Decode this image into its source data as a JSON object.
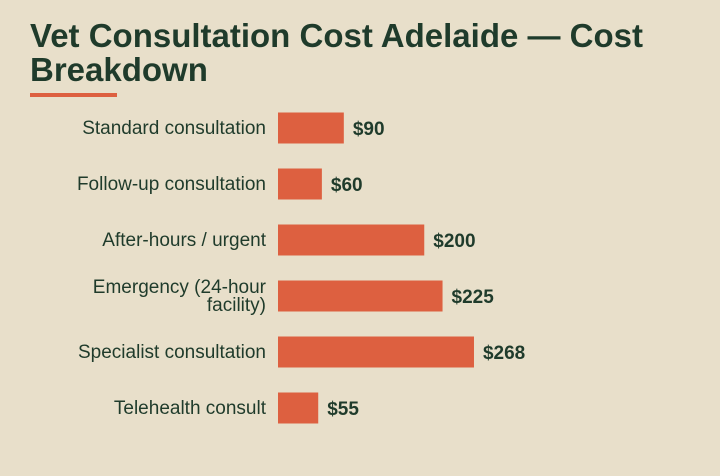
{
  "colors": {
    "background": "#e8dfca",
    "text": "#1f3b2b",
    "accent": "#dd6040"
  },
  "chart_data": {
    "type": "bar",
    "orientation": "horizontal",
    "title": "Vet Consultation Cost Adelaide — Cost Breakdown",
    "categories": [
      "Standard consultation",
      "Follow-up consultation",
      "After-hours / urgent",
      "Emergency (24-hour facility)",
      "Specialist consultation",
      "Telehealth consult"
    ],
    "values": [
      90,
      60,
      200,
      225,
      268,
      55
    ],
    "value_labels": [
      "$90",
      "$60",
      "$200",
      "$225",
      "$268",
      "$55"
    ],
    "unit": "$",
    "grid": false,
    "legend": "none"
  }
}
